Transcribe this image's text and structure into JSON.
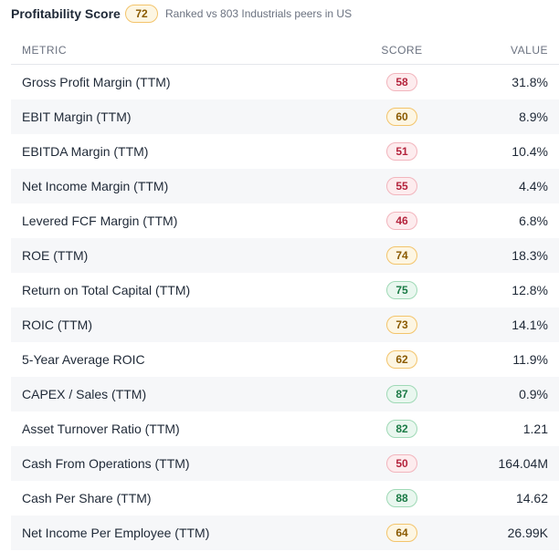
{
  "header": {
    "title": "Profitability Score",
    "overall_score": "72",
    "subtitle": "Ranked vs 803 Industrials peers in US"
  },
  "colors": {
    "red": "#b4233c",
    "amber": "#8a5a00",
    "green": "#1a7a45"
  },
  "table": {
    "columns": {
      "metric": "METRIC",
      "score": "SCORE",
      "value": "VALUE"
    },
    "rows": [
      {
        "metric": "Gross Profit Margin (TTM)",
        "score": "58",
        "tier": "red",
        "value": "31.8%"
      },
      {
        "metric": "EBIT Margin (TTM)",
        "score": "60",
        "tier": "amber",
        "value": "8.9%"
      },
      {
        "metric": "EBITDA Margin (TTM)",
        "score": "51",
        "tier": "red",
        "value": "10.4%"
      },
      {
        "metric": "Net Income Margin (TTM)",
        "score": "55",
        "tier": "red",
        "value": "4.4%"
      },
      {
        "metric": "Levered FCF Margin (TTM)",
        "score": "46",
        "tier": "red",
        "value": "6.8%"
      },
      {
        "metric": "ROE (TTM)",
        "score": "74",
        "tier": "amber",
        "value": "18.3%"
      },
      {
        "metric": "Return on Total Capital (TTM)",
        "score": "75",
        "tier": "green",
        "value": "12.8%"
      },
      {
        "metric": "ROIC (TTM)",
        "score": "73",
        "tier": "amber",
        "value": "14.1%"
      },
      {
        "metric": "5-Year Average ROIC",
        "score": "62",
        "tier": "amber",
        "value": "11.9%"
      },
      {
        "metric": "CAPEX / Sales (TTM)",
        "score": "87",
        "tier": "green",
        "value": "0.9%"
      },
      {
        "metric": "Asset Turnover Ratio (TTM)",
        "score": "82",
        "tier": "green",
        "value": "1.21"
      },
      {
        "metric": "Cash From Operations (TTM)",
        "score": "50",
        "tier": "red",
        "value": "164.04M"
      },
      {
        "metric": "Cash Per Share (TTM)",
        "score": "88",
        "tier": "green",
        "value": "14.62"
      },
      {
        "metric": "Net Income Per Employee (TTM)",
        "score": "64",
        "tier": "amber",
        "value": "26.99K"
      }
    ]
  }
}
